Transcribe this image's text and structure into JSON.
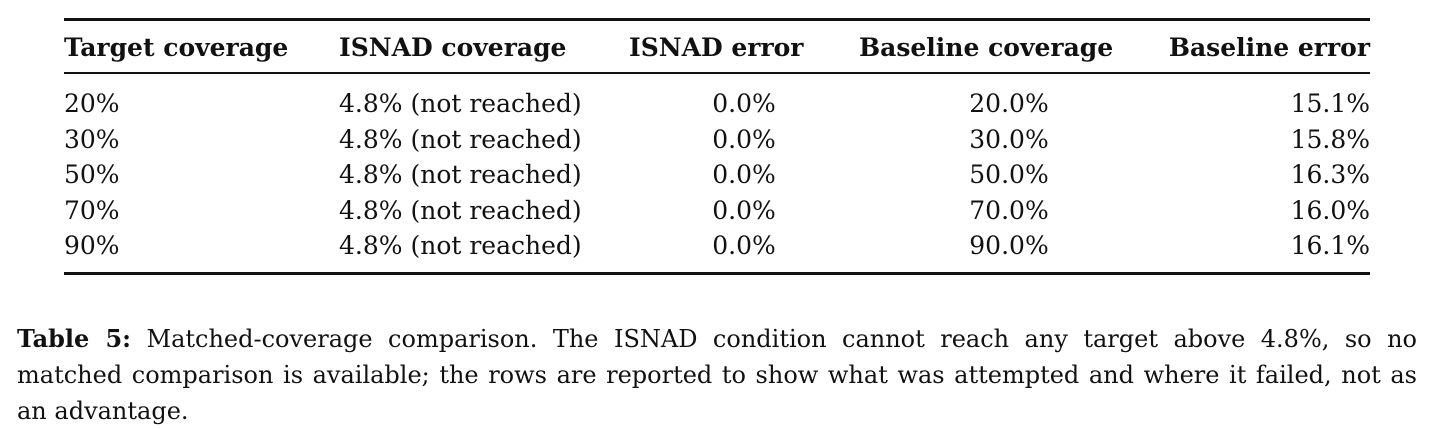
{
  "table": {
    "headers": [
      "Target coverage",
      "ISNAD coverage",
      "ISNAD error",
      "Baseline coverage",
      "Baseline error"
    ],
    "rows": [
      [
        "20%",
        "4.8% (not reached)",
        "0.0%",
        "20.0%",
        "15.1%"
      ],
      [
        "30%",
        "4.8% (not reached)",
        "0.0%",
        "30.0%",
        "15.8%"
      ],
      [
        "50%",
        "4.8% (not reached)",
        "0.0%",
        "50.0%",
        "16.3%"
      ],
      [
        "70%",
        "4.8% (not reached)",
        "0.0%",
        "70.0%",
        "16.0%"
      ],
      [
        "90%",
        "4.8% (not reached)",
        "0.0%",
        "90.0%",
        "16.1%"
      ]
    ]
  },
  "caption": {
    "label": "Table 5:",
    "text": "Matched-coverage comparison. The ISNAD condition cannot reach any target above 4.8%, so no matched comparison is available; the rows are reported to show what was attempted and where it failed, not as an advantage."
  }
}
